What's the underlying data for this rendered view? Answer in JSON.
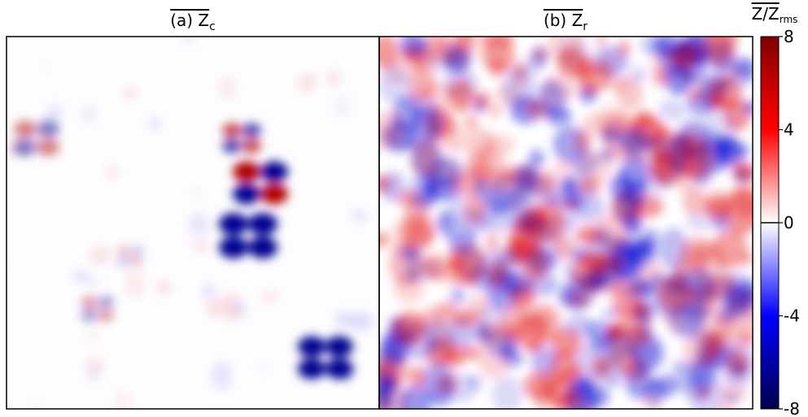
{
  "chart_data": {
    "type": "heatmap",
    "panels": [
      {
        "title": "(a) Z",
        "title_sub": "c"
      },
      {
        "title": "(b) Z",
        "title_sub": "r"
      }
    ],
    "colorbar": {
      "label": "Z/Z",
      "label_sub": "rms",
      "colormap": "seismic",
      "clim": [
        -8,
        8
      ],
      "ticks": [
        8,
        4,
        0,
        -4,
        -8
      ]
    }
  }
}
